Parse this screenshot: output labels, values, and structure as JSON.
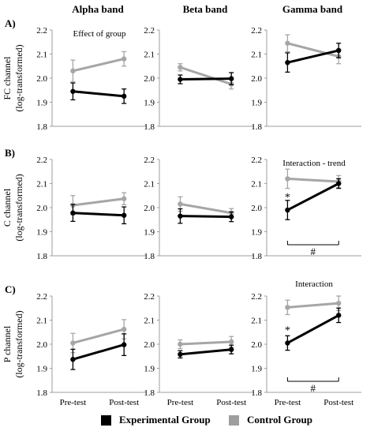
{
  "figure": {
    "band_titles": [
      "Alpha band",
      "Beta band",
      "Gamma band"
    ],
    "row_letters": [
      "A)",
      "B)",
      "C)"
    ],
    "row_ylabels": [
      [
        "FC channel",
        "(log-transformed)"
      ],
      [
        "C channel",
        "(log-transformed)"
      ],
      [
        "P channel",
        "(log-transformed)"
      ]
    ],
    "legend": [
      {
        "label": "Experimental Group",
        "color": "#000000"
      },
      {
        "label": "Control Group",
        "color": "#9e9e9e"
      }
    ],
    "colors": {
      "experimental": "#000000",
      "control": "#a6a6a6",
      "axis": "#9e9e9e"
    }
  },
  "chart_data": [
    {
      "type": "line",
      "row": 0,
      "col": 0,
      "categories": [
        "Pre-test",
        "Post-test"
      ],
      "ylim": [
        1.8,
        2.2
      ],
      "yticks": [
        "1.8",
        "1.9",
        "2.0",
        "2.1",
        "2.2"
      ],
      "annotation": "Effect of group",
      "series": [
        {
          "name": "Experimental Group",
          "values": [
            1.945,
            1.925
          ],
          "err": [
            0.035,
            0.03
          ]
        },
        {
          "name": "Control Group",
          "values": [
            2.03,
            2.08
          ],
          "err": [
            0.045,
            0.03
          ]
        }
      ]
    },
    {
      "type": "line",
      "row": 0,
      "col": 1,
      "categories": [
        "Pre-test",
        "Post-test"
      ],
      "ylim": [
        1.8,
        2.2
      ],
      "yticks": [
        "1.8",
        "1.9",
        "2.0",
        "2.1",
        "2.2"
      ],
      "series": [
        {
          "name": "Experimental Group",
          "values": [
            1.995,
            1.998
          ],
          "err": [
            0.018,
            0.025
          ]
        },
        {
          "name": "Control Group",
          "values": [
            2.045,
            1.975
          ],
          "err": [
            0.015,
            0.02
          ]
        }
      ]
    },
    {
      "type": "line",
      "row": 0,
      "col": 2,
      "categories": [
        "Pre-test",
        "Post-test"
      ],
      "ylim": [
        1.8,
        2.2
      ],
      "yticks": [
        "1.8",
        "1.9",
        "2.0",
        "2.1",
        "2.2"
      ],
      "series": [
        {
          "name": "Experimental Group",
          "values": [
            2.065,
            2.115
          ],
          "err": [
            0.04,
            0.03
          ]
        },
        {
          "name": "Control Group",
          "values": [
            2.145,
            2.09
          ],
          "err": [
            0.035,
            0.03
          ]
        }
      ]
    },
    {
      "type": "line",
      "row": 1,
      "col": 0,
      "categories": [
        "Pre-test",
        "Post-test"
      ],
      "ylim": [
        1.8,
        2.2
      ],
      "yticks": [
        "1.8",
        "1.9",
        "2.0",
        "2.1",
        "2.2"
      ],
      "series": [
        {
          "name": "Experimental Group",
          "values": [
            1.978,
            1.968
          ],
          "err": [
            0.035,
            0.035
          ]
        },
        {
          "name": "Control Group",
          "values": [
            2.01,
            2.037
          ],
          "err": [
            0.04,
            0.025
          ]
        }
      ]
    },
    {
      "type": "line",
      "row": 1,
      "col": 1,
      "categories": [
        "Pre-test",
        "Post-test"
      ],
      "ylim": [
        1.8,
        2.2
      ],
      "yticks": [
        "1.8",
        "1.9",
        "2.0",
        "2.1",
        "2.2"
      ],
      "series": [
        {
          "name": "Experimental Group",
          "values": [
            1.965,
            1.962
          ],
          "err": [
            0.03,
            0.02
          ]
        },
        {
          "name": "Control Group",
          "values": [
            2.015,
            1.978
          ],
          "err": [
            0.03,
            0.018
          ]
        }
      ]
    },
    {
      "type": "line",
      "row": 1,
      "col": 2,
      "categories": [
        "Pre-test",
        "Post-test"
      ],
      "ylim": [
        1.8,
        2.2
      ],
      "yticks": [
        "1.8",
        "1.9",
        "2.0",
        "2.1",
        "2.2"
      ],
      "annotation": "Interaction - trend",
      "significance": [
        "*",
        "#"
      ],
      "series": [
        {
          "name": "Experimental Group",
          "values": [
            1.99,
            2.1
          ],
          "err": [
            0.04,
            0.02
          ]
        },
        {
          "name": "Control Group",
          "values": [
            2.12,
            2.108
          ],
          "err": [
            0.04,
            0.025
          ]
        }
      ]
    },
    {
      "type": "line",
      "row": 2,
      "col": 0,
      "categories": [
        "Pre-test",
        "Post-test"
      ],
      "ylim": [
        1.8,
        2.2
      ],
      "yticks": [
        "1.8",
        "1.9",
        "2.0",
        "2.1",
        "2.2"
      ],
      "series": [
        {
          "name": "Experimental Group",
          "values": [
            1.937,
            1.998
          ],
          "err": [
            0.042,
            0.045
          ]
        },
        {
          "name": "Control Group",
          "values": [
            2.005,
            2.062
          ],
          "err": [
            0.04,
            0.04
          ]
        }
      ]
    },
    {
      "type": "line",
      "row": 2,
      "col": 1,
      "categories": [
        "Pre-test",
        "Post-test"
      ],
      "ylim": [
        1.8,
        2.2
      ],
      "yticks": [
        "1.8",
        "1.9",
        "2.0",
        "2.1",
        "2.2"
      ],
      "series": [
        {
          "name": "Experimental Group",
          "values": [
            1.958,
            1.978
          ],
          "err": [
            0.015,
            0.018
          ]
        },
        {
          "name": "Control Group",
          "values": [
            2.0,
            2.01
          ],
          "err": [
            0.018,
            0.022
          ]
        }
      ]
    },
    {
      "type": "line",
      "row": 2,
      "col": 2,
      "categories": [
        "Pre-test",
        "Post-test"
      ],
      "ylim": [
        1.8,
        2.2
      ],
      "yticks": [
        "1.8",
        "1.9",
        "2.0",
        "2.1",
        "2.2"
      ],
      "annotation": "Interaction",
      "significance": [
        "*",
        "#"
      ],
      "series": [
        {
          "name": "Experimental Group",
          "values": [
            2.005,
            2.12
          ],
          "err": [
            0.03,
            0.03
          ]
        },
        {
          "name": "Control Group",
          "values": [
            2.153,
            2.17
          ],
          "err": [
            0.03,
            0.03
          ]
        }
      ]
    }
  ]
}
